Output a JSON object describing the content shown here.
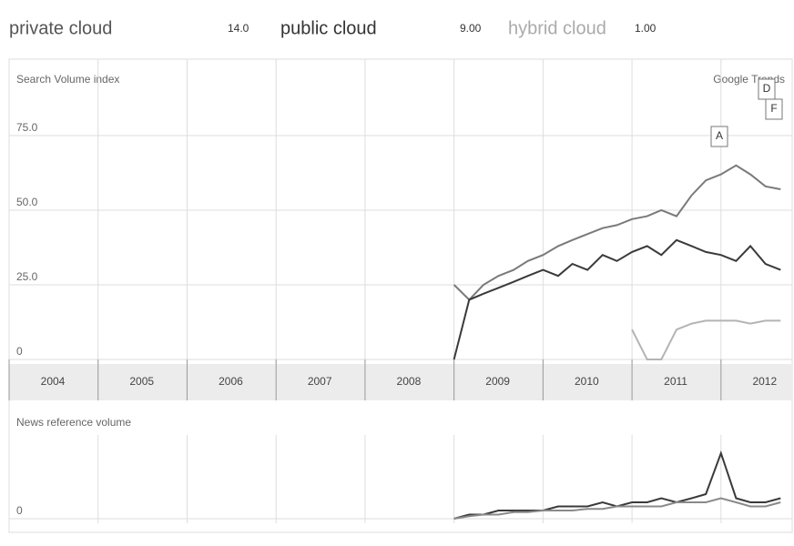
{
  "header": [
    {
      "term": "private cloud",
      "average": "14.0"
    },
    {
      "term": "public cloud",
      "average": "9.00"
    },
    {
      "term": "hybrid cloud",
      "average": "1.00"
    }
  ],
  "chart_data": [
    {
      "type": "line",
      "title": "Search Volume index",
      "source": "Google Trends",
      "x": [
        2009.0,
        2009.17,
        2009.33,
        2009.5,
        2009.67,
        2009.83,
        2010.0,
        2010.17,
        2010.33,
        2010.5,
        2010.67,
        2010.83,
        2011.0,
        2011.17,
        2011.33,
        2011.5,
        2011.67,
        2011.83,
        2012.0,
        2012.17,
        2012.33,
        2012.5,
        2012.67
      ],
      "series": [
        {
          "name": "private cloud",
          "color": "#7a7a7a",
          "values": [
            25,
            20,
            25,
            28,
            30,
            33,
            35,
            38,
            40,
            42,
            44,
            45,
            47,
            48,
            50,
            48,
            55,
            60,
            62,
            65,
            62,
            58,
            57
          ]
        },
        {
          "name": "public cloud",
          "color": "#3a3a3a",
          "values": [
            0,
            20,
            22,
            24,
            26,
            28,
            30,
            28,
            32,
            30,
            35,
            33,
            36,
            38,
            35,
            40,
            38,
            36,
            35,
            33,
            38,
            32,
            30
          ]
        },
        {
          "name": "hybrid cloud",
          "color": "#b4b4b4",
          "values": [
            null,
            null,
            null,
            null,
            null,
            null,
            null,
            null,
            null,
            null,
            null,
            null,
            10,
            0,
            0,
            10,
            12,
            13,
            13,
            13,
            12,
            13,
            13
          ]
        }
      ],
      "xlim": [
        2004,
        2012.8
      ],
      "xticks": [
        2004,
        2005,
        2006,
        2007,
        2008,
        2009,
        2010,
        2011,
        2012
      ],
      "ylim": [
        0,
        100
      ],
      "yticks": [
        0,
        {
          "value": 25,
          "label": "25.0"
        },
        {
          "value": 50,
          "label": "50.0"
        },
        {
          "value": 75,
          "label": "75.0"
        }
      ],
      "grid": true,
      "annotations": [
        "A",
        "D",
        "F"
      ]
    },
    {
      "type": "line",
      "title": "News reference volume",
      "x": [
        2009.0,
        2009.17,
        2009.33,
        2009.5,
        2009.67,
        2009.83,
        2010.0,
        2010.17,
        2010.33,
        2010.5,
        2010.67,
        2010.83,
        2011.0,
        2011.17,
        2011.33,
        2011.5,
        2011.67,
        2011.83,
        2012.0,
        2012.17,
        2012.33,
        2012.5,
        2012.67
      ],
      "series": [
        {
          "color": "#3a3a3a",
          "values": [
            0,
            0.5,
            0.5,
            1,
            1,
            1,
            1,
            1.5,
            1.5,
            1.5,
            2,
            1.5,
            2,
            2,
            2.5,
            2,
            2.5,
            3,
            8,
            2.5,
            2,
            2,
            2.5
          ]
        },
        {
          "color": "#8a8a8a",
          "values": [
            0,
            0.3,
            0.5,
            0.5,
            0.8,
            0.8,
            1,
            1,
            1,
            1.2,
            1.2,
            1.5,
            1.5,
            1.5,
            1.5,
            2,
            2,
            2,
            2.5,
            2,
            1.5,
            1.5,
            2
          ]
        }
      ],
      "xlim": [
        2004,
        2012.8
      ],
      "xticks": [
        2004,
        2005,
        2006,
        2007,
        2008,
        2009,
        2010,
        2011,
        2012
      ],
      "ylim": [
        0,
        10
      ],
      "yticks": [
        0
      ],
      "grid": true
    }
  ]
}
